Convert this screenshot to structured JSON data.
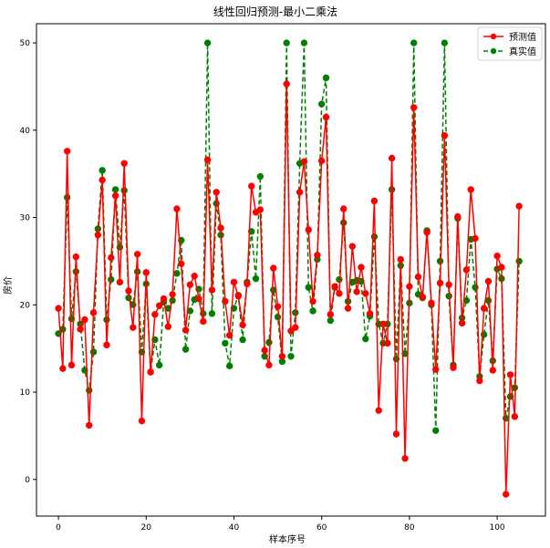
{
  "chart_data": {
    "type": "line",
    "title": "线性回归预测-最小二乘法",
    "xlabel": "样本序号",
    "ylabel": "房价",
    "xlim": [
      -5,
      111
    ],
    "ylim": [
      -4.2,
      52.2
    ],
    "xticks": [
      0,
      20,
      40,
      60,
      80,
      100
    ],
    "yticks": [
      0,
      10,
      20,
      30,
      40,
      50
    ],
    "grid": false,
    "legend_position": "top-right",
    "series": [
      {
        "name": "预测值",
        "color": "#ff0000",
        "linestyle": "solid",
        "marker": "circle",
        "x": [
          0,
          1,
          2,
          3,
          4,
          5,
          6,
          7,
          8,
          9,
          10,
          11,
          12,
          13,
          14,
          15,
          16,
          17,
          18,
          19,
          20,
          21,
          22,
          23,
          24,
          25,
          26,
          27,
          28,
          29,
          30,
          31,
          32,
          33,
          34,
          35,
          36,
          37,
          38,
          39,
          40,
          41,
          42,
          43,
          44,
          45,
          46,
          47,
          48,
          49,
          50,
          51,
          52,
          53,
          54,
          55,
          56,
          57,
          58,
          59,
          60,
          61,
          62,
          63,
          64,
          65,
          66,
          67,
          68,
          69,
          70,
          71,
          72,
          73,
          74,
          75,
          76,
          77,
          78,
          79,
          80,
          81,
          82,
          83,
          84,
          85,
          86,
          87,
          88,
          89,
          90,
          91,
          92,
          93,
          94,
          95,
          96,
          97,
          98,
          99,
          100,
          101,
          102,
          103,
          104,
          105
        ],
        "values": [
          19.6,
          12.7,
          37.6,
          13.1,
          25.5,
          17.2,
          18.3,
          6.2,
          19.1,
          28.0,
          34.3,
          15.4,
          25.4,
          32.5,
          22.6,
          36.2,
          21.6,
          17.4,
          25.8,
          6.7,
          23.7,
          12.3,
          18.9,
          19.9,
          20.7,
          17.5,
          21.2,
          31.0,
          24.7,
          17.1,
          22.3,
          23.3,
          20.7,
          18.1,
          36.6,
          21.7,
          32.9,
          28.8,
          20.4,
          16.5,
          22.6,
          21.0,
          17.7,
          22.4,
          33.6,
          30.6,
          30.9,
          14.8,
          13.1,
          24.2,
          19.8,
          14.1,
          45.3,
          17.0,
          17.4,
          32.9,
          36.4,
          28.6,
          20.4,
          25.7,
          36.5,
          41.5,
          18.9,
          22.1,
          21.3,
          31.0,
          19.6,
          26.7,
          21.5,
          24.3,
          21.3,
          19.0,
          31.9,
          7.9,
          17.8,
          15.6,
          36.8,
          5.2,
          25.2,
          2.4,
          22.1,
          42.6,
          23.2,
          20.9,
          28.3,
          20.2,
          12.6,
          22.5,
          39.4,
          22.3,
          12.8,
          30.1,
          17.9,
          24.0,
          33.2,
          27.6,
          11.3,
          19.6,
          22.7,
          12.5,
          25.6,
          24.3,
          -1.7,
          12.0,
          7.2,
          31.3
        ]
      },
      {
        "name": "真实值",
        "color": "#008000",
        "linestyle": "dashed",
        "marker": "circle",
        "x": [
          0,
          1,
          2,
          3,
          4,
          5,
          6,
          7,
          8,
          9,
          10,
          11,
          12,
          13,
          14,
          15,
          16,
          17,
          18,
          19,
          20,
          21,
          22,
          23,
          24,
          25,
          26,
          27,
          28,
          29,
          30,
          31,
          32,
          33,
          34,
          35,
          36,
          37,
          38,
          39,
          40,
          41,
          42,
          43,
          44,
          45,
          46,
          47,
          48,
          49,
          50,
          51,
          52,
          53,
          54,
          55,
          56,
          57,
          58,
          59,
          60,
          61,
          62,
          63,
          64,
          65,
          66,
          67,
          68,
          69,
          70,
          71,
          72,
          73,
          74,
          75,
          76,
          77,
          78,
          79,
          80,
          81,
          82,
          83,
          84,
          85,
          86,
          87,
          88,
          89,
          90,
          91,
          92,
          93,
          94,
          95,
          96,
          97,
          98,
          99,
          100,
          101,
          102,
          103,
          104,
          105
        ],
        "values": [
          16.7,
          17.2,
          32.3,
          18.4,
          23.8,
          17.8,
          12.5,
          10.2,
          14.6,
          28.7,
          35.4,
          18.3,
          22.9,
          33.2,
          26.6,
          33.1,
          20.8,
          20.0,
          23.8,
          14.6,
          22.4,
          12.3,
          16.0,
          13.1,
          20.3,
          19.6,
          20.5,
          23.6,
          27.4,
          14.9,
          19.3,
          20.6,
          21.8,
          19.0,
          50.0,
          19.0,
          31.6,
          28.0,
          15.6,
          13.0,
          19.6,
          21.1,
          16.0,
          22.6,
          28.4,
          23.0,
          34.7,
          14.1,
          15.7,
          21.7,
          18.6,
          13.5,
          50.0,
          14.1,
          19.1,
          36.2,
          50.0,
          22.0,
          19.3,
          25.2,
          43.0,
          46.0,
          18.2,
          22.0,
          22.9,
          29.4,
          20.4,
          22.6,
          22.8,
          22.7,
          16.1,
          18.7,
          27.8,
          17.8,
          15.6,
          17.8,
          33.2,
          13.8,
          24.5,
          14.4,
          20.2,
          50.0,
          21.2,
          20.8,
          28.5,
          20.0,
          5.6,
          25.0,
          50.0,
          21.0,
          13.1,
          29.9,
          18.5,
          20.5,
          27.5,
          22.0,
          11.8,
          16.6,
          20.5,
          13.6,
          24.1,
          23.0,
          7.0,
          9.5,
          10.5,
          25.0
        ]
      }
    ]
  }
}
